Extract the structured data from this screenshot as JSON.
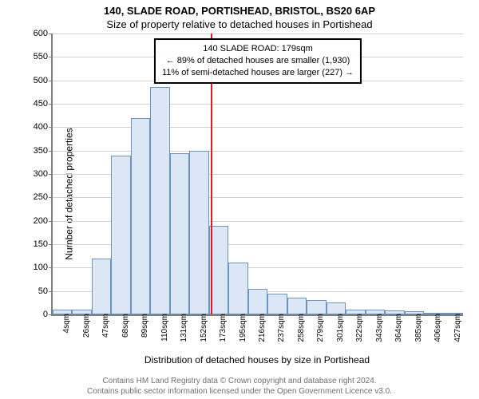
{
  "header": {
    "title": "140, SLADE ROAD, PORTISHEAD, BRISTOL, BS20 6AP",
    "subtitle": "Size of property relative to detached houses in Portishead"
  },
  "chart": {
    "type": "histogram",
    "ylabel": "Number of detached properties",
    "xlabel": "Distribution of detached houses by size in Portishead",
    "ylim": [
      0,
      600
    ],
    "ytick_step": 50,
    "background_color": "#ffffff",
    "grid_color": "#d0d0d0",
    "axis_color": "#7f7f7f",
    "bar_fill": "#dbe7f5",
    "bar_stroke": "#6b93c4",
    "bar_stroke_width": 1,
    "marker": {
      "x_index": 8.1,
      "color": "#e41a1c",
      "lines": [
        "140 SLADE ROAD: 179sqm",
        "← 89% of detached houses are smaller (1,930)",
        "11% of semi-detached houses are larger (227) →"
      ]
    },
    "x_labels": [
      "4sqm",
      "26sqm",
      "47sqm",
      "68sqm",
      "89sqm",
      "110sqm",
      "131sqm",
      "152sqm",
      "173sqm",
      "195sqm",
      "216sqm",
      "237sqm",
      "258sqm",
      "279sqm",
      "301sqm",
      "322sqm",
      "343sqm",
      "364sqm",
      "385sqm",
      "406sqm",
      "427sqm"
    ],
    "values": [
      10,
      10,
      120,
      340,
      420,
      485,
      345,
      350,
      190,
      110,
      55,
      45,
      35,
      30,
      25,
      10,
      10,
      8,
      6,
      4,
      4
    ]
  },
  "footer": {
    "line1": "Contains HM Land Registry data © Crown copyright and database right 2024.",
    "line2": "Contains public sector information licensed under the Open Government Licence v3.0."
  }
}
